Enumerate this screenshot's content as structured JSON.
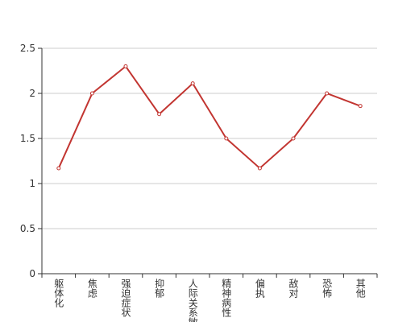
{
  "chart_data": {
    "type": "line",
    "categories": [
      "躯体化",
      "焦虑",
      "强迫症状",
      "抑郁",
      "人际关系敏感",
      "精神病性",
      "偏执",
      "敌对",
      "恐怖",
      "其他"
    ],
    "series": [
      {
        "color": "#c23531",
        "values": [
          1.17,
          2,
          2.3,
          1.77,
          2.11,
          1.5,
          1.17,
          1.5,
          2,
          1.86
        ]
      }
    ],
    "ylim": [
      0,
      2.5
    ],
    "yticks": [
      0,
      0.5,
      1,
      1.5,
      2,
      2.5
    ],
    "grid": true
  }
}
